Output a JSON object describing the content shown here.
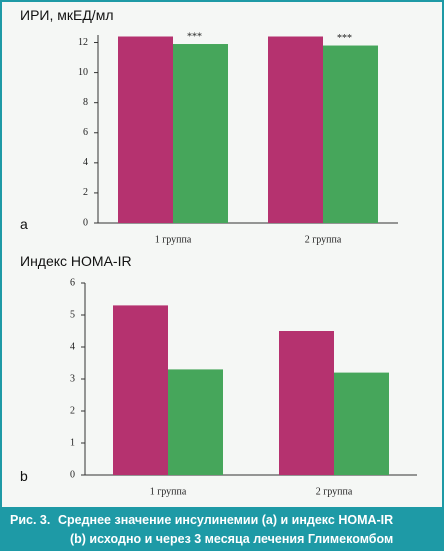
{
  "chart_data": [
    {
      "type": "bar",
      "title": "ИРИ, мкЕД/мл",
      "panel_label": "a",
      "categories": [
        "1 группа",
        "2 группа"
      ],
      "series": [
        {
          "color": "#b5326f",
          "values": [
            12.4,
            12.4
          ]
        },
        {
          "color": "#46a65b",
          "values": [
            11.9,
            11.8
          ],
          "annotations": [
            "***",
            "***"
          ]
        }
      ],
      "ylim": [
        0,
        12.5
      ],
      "yticks": [
        0,
        2,
        4,
        6,
        8,
        10,
        12
      ]
    },
    {
      "type": "bar",
      "title": "Индекс HOMA-IR",
      "panel_label": "b",
      "categories": [
        "1 группа",
        "2 группа"
      ],
      "series": [
        {
          "color": "#b5326f",
          "values": [
            5.3,
            4.5
          ]
        },
        {
          "color": "#46a65b",
          "values": [
            3.3,
            3.2
          ]
        }
      ],
      "ylim": [
        0,
        6
      ],
      "yticks": [
        0,
        1,
        2,
        3,
        4,
        5,
        6
      ]
    }
  ],
  "caption": {
    "label": "Рис. 3.",
    "lines": [
      "Среднее значение инсулинемии (a) и индекс HOMA-IR",
      "(b) исходно и через 3 месяца лечения Глимекомбом"
    ]
  }
}
